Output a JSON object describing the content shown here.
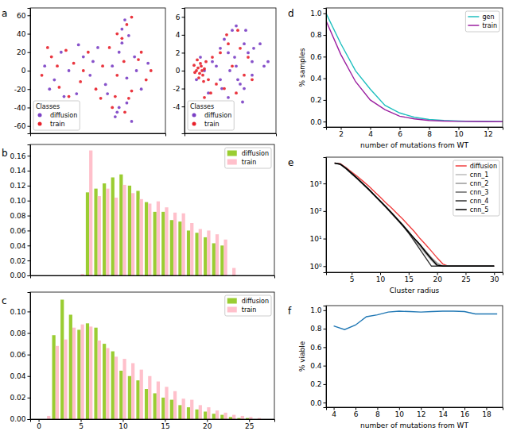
{
  "chart_data": [
    {
      "type": "scatter",
      "title": "a",
      "legend_title": "Classes",
      "legend": "lower left",
      "marker": "circle",
      "tick_labels": "y",
      "xlim": [
        -70,
        70
      ],
      "ylim": [
        -68,
        68
      ],
      "yticks": [
        -60,
        -40,
        -20,
        0,
        20,
        40,
        60
      ],
      "series": [
        {
          "name": "diffusion",
          "color": "#7a3fc4",
          "x": [
            -55,
            -45,
            -38,
            -30,
            -22,
            -15,
            -8,
            0,
            8,
            15,
            22,
            30,
            38,
            45,
            52,
            -50,
            -35,
            -20,
            -5,
            10,
            25,
            40,
            28,
            32,
            22,
            35,
            18,
            25,
            30,
            20
          ],
          "values": [
            5,
            -10,
            20,
            0,
            -25,
            15,
            -5,
            25,
            -15,
            5,
            20,
            -8,
            15,
            -20,
            8,
            -20,
            -28,
            28,
            10,
            -25,
            45,
            0,
            55,
            38,
            -40,
            -55,
            -50,
            30,
            -35,
            -45
          ]
        },
        {
          "name": "train",
          "color": "#e8202a",
          "x": [
            -58,
            -48,
            -40,
            -33,
            -25,
            -18,
            -10,
            -2,
            5,
            12,
            20,
            27,
            35,
            42,
            50,
            -52,
            -30,
            -15,
            3,
            18,
            30,
            45,
            25,
            35,
            28,
            20,
            32,
            15,
            55,
            -42
          ],
          "values": [
            -5,
            15,
            -18,
            22,
            8,
            -12,
            20,
            -20,
            5,
            25,
            -5,
            10,
            -22,
            12,
            -10,
            25,
            -28,
            0,
            -30,
            -28,
            50,
            20,
            35,
            58,
            -45,
            40,
            -30,
            -40,
            0,
            5
          ]
        }
      ]
    },
    {
      "type": "scatter",
      "legend_title": "Classes",
      "legend": "lower left",
      "marker": "circle",
      "tick_labels": "y",
      "xlim": [
        -4.5,
        7
      ],
      "ylim": [
        -7,
        7
      ],
      "yticks": [
        -4,
        -2,
        0,
        2,
        4,
        6
      ],
      "series": [
        {
          "name": "diffusion",
          "color": "#7a3fc4",
          "x": [
            -2,
            -1,
            0,
            1,
            2,
            3,
            4,
            5,
            -1.5,
            0.5,
            1.5,
            2.5,
            3.5,
            -0.5,
            1,
            2,
            3,
            4,
            0,
            1.8,
            2.8,
            -2.5,
            -3,
            0.2,
            1.2,
            2.2,
            3.2,
            4.2,
            5.5,
            6
          ],
          "values": [
            0,
            1,
            -1,
            2,
            0.5,
            -2,
            1,
            3,
            -2.5,
            3.5,
            4.5,
            -1.5,
            2,
            0.5,
            -3,
            5,
            3,
            -0.5,
            2.5,
            1.5,
            -3.5,
            1.5,
            -1,
            -2,
            0,
            -1,
            4.5,
            2.5,
            0.5,
            1
          ]
        },
        {
          "name": "train",
          "color": "#e8202a",
          "x": [
            -3,
            -2.8,
            -2.6,
            -2.4,
            -2.2,
            -2,
            -3.2,
            -2.5,
            -2.7,
            -2.3,
            -1.8,
            -1.5,
            -1,
            -0.5,
            0,
            0.5,
            1,
            1.5,
            2,
            2.5,
            3,
            3.5,
            4,
            -2.9,
            -2.1,
            -1.2,
            0.8,
            2.2,
            -3.3,
            -2
          ],
          "values": [
            0,
            0.3,
            -0.3,
            0.5,
            -0.5,
            0.2,
            -0.2,
            0.8,
            -0.8,
            0,
            1,
            -1,
            1.5,
            -1.5,
            2,
            -2,
            3,
            0.5,
            -2.5,
            2.5,
            -0.5,
            1.5,
            -1,
            1.2,
            -1.2,
            -2.5,
            4,
            4.5,
            0.6,
            -3
          ]
        }
      ]
    },
    {
      "type": "bar",
      "title": "b",
      "legend": "upper right",
      "tick_labels": "y",
      "xlim": [
        -1,
        28
      ],
      "ylim": [
        0,
        0.175
      ],
      "yticks": [
        {
          "value": 0,
          "label": "0.00"
        },
        0.02,
        0.04,
        0.06,
        0.08,
        {
          "value": 0.1,
          "label": "0.10"
        },
        0.12,
        0.14,
        0.16
      ],
      "x": [
        5,
        6,
        7,
        8,
        9,
        10,
        11,
        12,
        13,
        14,
        15,
        16,
        17,
        18,
        19,
        20,
        21,
        22,
        23
      ],
      "series": [
        {
          "name": "diffusion",
          "color": "#9acd32",
          "values": [
            0,
            0.111,
            0.116,
            0.123,
            0.131,
            0.135,
            0.12,
            0.113,
            0.098,
            0.085,
            0.085,
            0.074,
            0.072,
            0.06,
            0.057,
            0.051,
            0.043,
            0.04,
            0
          ]
        },
        {
          "name": "train",
          "color": "#ffc0cb",
          "values": [
            0.002,
            0.167,
            0.106,
            0.116,
            0.104,
            0.121,
            0.11,
            0.102,
            0.096,
            0.099,
            0.091,
            0.084,
            0.083,
            0.07,
            0.062,
            0.06,
            0.055,
            0.048,
            0.01
          ]
        }
      ]
    },
    {
      "type": "bar",
      "title": "c",
      "legend": "upper right",
      "xlim": [
        -1,
        28
      ],
      "xticks": [
        0,
        5,
        10,
        15,
        20,
        25
      ],
      "ylim": [
        0,
        0.118
      ],
      "yticks": [
        {
          "value": 0,
          "label": "0.00"
        },
        0.02,
        0.04,
        0.06,
        0.08,
        {
          "value": 0.1,
          "label": "0.10"
        }
      ],
      "x": [
        1,
        2,
        3,
        4,
        5,
        6,
        7,
        8,
        9,
        10,
        11,
        12,
        13,
        14,
        15,
        16,
        17,
        18,
        19,
        20,
        21,
        22,
        23,
        24,
        25,
        26
      ],
      "series": [
        {
          "name": "diffusion",
          "color": "#9acd32",
          "values": [
            0,
            0.078,
            0.111,
            0.097,
            0.083,
            0.089,
            0.085,
            0.07,
            0.063,
            0.045,
            0.04,
            0.036,
            0.028,
            0.024,
            0.02,
            0.018,
            0.013,
            0.011,
            0.009,
            0.007,
            0.005,
            0.004,
            0.002,
            0.001,
            0.001,
            0
          ]
        },
        {
          "name": "train",
          "color": "#ffc0cb",
          "values": [
            0.003,
            0.068,
            0.074,
            0.085,
            0.088,
            0.086,
            0.073,
            0.066,
            0.058,
            0.056,
            0.052,
            0.046,
            0.04,
            0.035,
            0.03,
            0.026,
            0.019,
            0.018,
            0.013,
            0.011,
            0.008,
            0.006,
            0.004,
            0.003,
            0.002,
            0.001
          ]
        }
      ]
    },
    {
      "type": "line",
      "title": "d",
      "legend": "upper right",
      "x_label": "number of mutations from WT",
      "y_label": "% samples",
      "xlim": [
        1,
        13
      ],
      "xticks": [
        2,
        4,
        6,
        8,
        10,
        12
      ],
      "ylim": [
        -0.05,
        1.05
      ],
      "yticks": [
        {
          "value": 0,
          "label": "0.0"
        },
        0.2,
        0.4,
        0.6,
        0.8,
        {
          "value": 1,
          "label": "1.0"
        }
      ],
      "x": [
        1,
        2,
        3,
        4,
        5,
        6,
        7,
        8,
        9,
        10,
        11,
        12,
        13
      ],
      "series": [
        {
          "name": "gen",
          "color": "#1fbfbf",
          "values": [
            1.0,
            0.72,
            0.47,
            0.3,
            0.15,
            0.08,
            0.04,
            0.02,
            0.01,
            0.005,
            0.002,
            0.001,
            0
          ]
        },
        {
          "name": "train",
          "color": "#9b1fa0",
          "values": [
            0.93,
            0.62,
            0.37,
            0.2,
            0.11,
            0.05,
            0.025,
            0.01,
            0.005,
            0.002,
            0.001,
            0,
            0
          ]
        }
      ]
    },
    {
      "type": "line",
      "title": "e",
      "legend": "upper right",
      "log": "y",
      "x_label": "Cluster radius",
      "xlim": [
        0.5,
        31.5
      ],
      "xticks": [
        5,
        10,
        15,
        20,
        25,
        30
      ],
      "ylim": [
        0.6,
        9000
      ],
      "yticks": [
        {
          "value": 1,
          "label": "10⁰"
        },
        {
          "value": 10,
          "label": "10¹"
        },
        {
          "value": 100,
          "label": "10²"
        },
        {
          "value": 1000,
          "label": "10³"
        }
      ],
      "x": [
        2,
        3,
        4,
        5,
        6,
        7,
        8,
        9,
        10,
        11,
        12,
        13,
        14,
        15,
        16,
        17,
        18,
        19,
        20,
        21,
        22,
        30
      ],
      "series": [
        {
          "name": "diffusion",
          "color": "#f04040",
          "values": [
            5500,
            5200,
            3800,
            2600,
            1800,
            1200,
            800,
            500,
            320,
            200,
            130,
            80,
            50,
            30,
            18,
            10,
            6,
            3.5,
            2,
            1.2,
            1,
            1
          ]
        },
        {
          "name": "cnn_1",
          "color": "#bbbbbb",
          "values": [
            5500,
            5000,
            3500,
            2300,
            1500,
            950,
            600,
            370,
            230,
            140,
            85,
            50,
            30,
            17,
            9,
            5,
            2.8,
            1.6,
            1,
            1,
            1,
            1
          ]
        },
        {
          "name": "cnn_2",
          "color": "#999999",
          "values": [
            5400,
            4900,
            3400,
            2200,
            1450,
            920,
            580,
            360,
            220,
            135,
            80,
            48,
            28,
            16,
            9,
            5.5,
            3,
            2,
            1.3,
            1,
            1,
            1
          ]
        },
        {
          "name": "cnn_3",
          "color": "#666666",
          "values": [
            5500,
            5000,
            3600,
            2400,
            1550,
            980,
            620,
            380,
            235,
            145,
            88,
            52,
            31,
            18,
            10,
            6,
            3.5,
            2,
            1,
            1,
            1,
            1
          ]
        },
        {
          "name": "cnn_4",
          "color": "#333333",
          "values": [
            5450,
            4950,
            3450,
            2250,
            1480,
            940,
            590,
            365,
            225,
            138,
            83,
            49,
            29,
            16,
            8,
            4,
            2,
            1,
            1,
            1,
            1,
            1
          ]
        },
        {
          "name": "cnn_5",
          "color": "#000000",
          "values": [
            5500,
            5050,
            3550,
            2350,
            1520,
            960,
            610,
            375,
            232,
            142,
            86,
            51,
            30,
            17,
            10,
            6,
            3.2,
            1.8,
            1.1,
            1,
            1,
            1
          ]
        }
      ]
    },
    {
      "type": "line",
      "title": "f",
      "x_label": "number of mutations from WT",
      "y_label": "% viable",
      "color": "#1f77b4",
      "xlim": [
        3.3,
        19.5
      ],
      "xticks": [
        4,
        6,
        8,
        10,
        12,
        14,
        16,
        18
      ],
      "ylim": [
        -0.05,
        1.05
      ],
      "yticks": [
        {
          "value": 0,
          "label": "0.0"
        },
        0.2,
        0.4,
        0.6,
        0.8,
        {
          "value": 1,
          "label": "1.0"
        }
      ],
      "x": [
        4,
        5,
        6,
        7,
        8,
        9,
        10,
        11,
        12,
        13,
        14,
        15,
        16,
        17,
        18,
        19
      ],
      "values": [
        0.83,
        0.79,
        0.84,
        0.93,
        0.95,
        0.98,
        0.99,
        0.985,
        0.98,
        0.985,
        0.99,
        0.99,
        0.985,
        0.96,
        0.96,
        0.96
      ]
    }
  ]
}
